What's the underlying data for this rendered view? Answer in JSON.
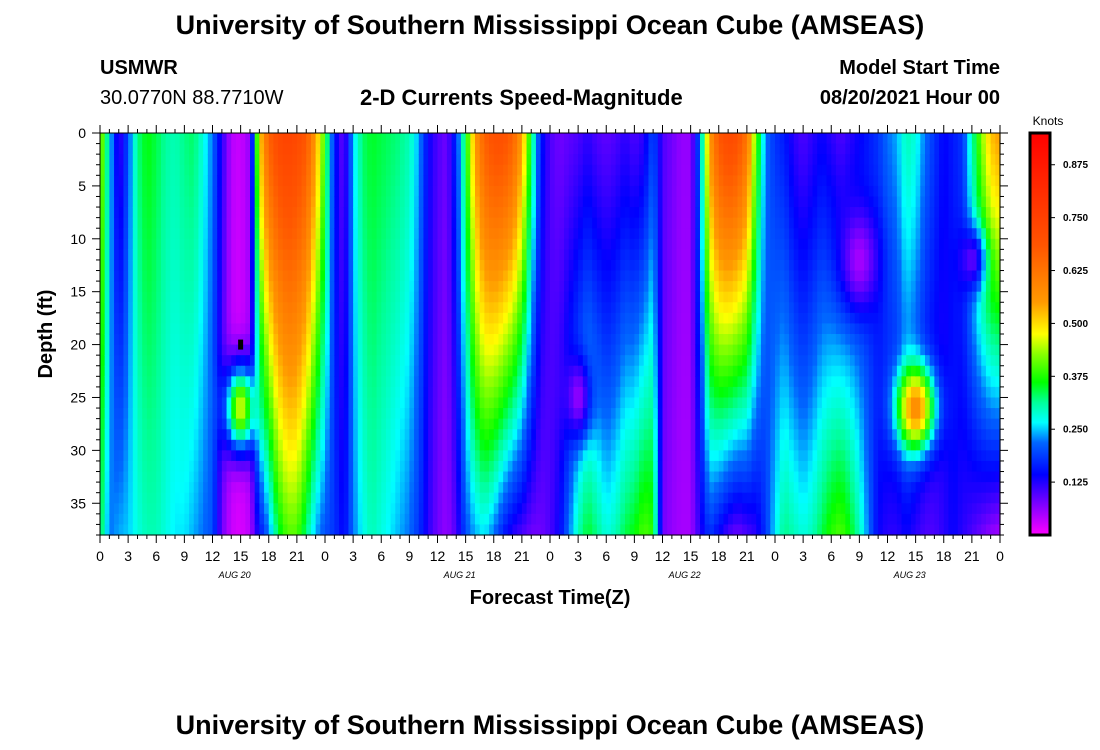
{
  "header": {
    "title": "University of Southern Mississippi Ocean Cube (AMSEAS)",
    "station": "USMWR",
    "coords": "30.0770N  88.7710W",
    "subtitle": "2-D Currents Speed-Magnitude",
    "start_label": "Model Start Time",
    "start_value": "08/20/2021 Hour 00"
  },
  "footer": {
    "title": "University of Southern Mississippi Ocean Cube (AMSEAS)"
  },
  "chart_data": {
    "type": "heatmap",
    "title": "2-D Currents Speed-Magnitude",
    "xlabel": "Forecast Time(Z)",
    "ylabel": "Depth (ft)",
    "x_unit": "hours since model start",
    "xlim": [
      0,
      96
    ],
    "ylim": [
      0,
      38
    ],
    "y_ticks": [
      0,
      5,
      10,
      15,
      20,
      25,
      30,
      35
    ],
    "x_tick_labels": [
      "0",
      "3",
      "6",
      "9",
      "12",
      "15",
      "18",
      "21",
      "0",
      "3",
      "6",
      "9",
      "12",
      "15",
      "18",
      "21",
      "0",
      "3",
      "6",
      "9",
      "12",
      "15",
      "18",
      "21",
      "0",
      "3",
      "6",
      "9",
      "12",
      "15",
      "18",
      "21",
      "0"
    ],
    "date_labels": [
      {
        "hour": 15,
        "label": "AUG 20"
      },
      {
        "hour": 39,
        "label": "AUG 21"
      },
      {
        "hour": 63,
        "label": "AUG 22"
      },
      {
        "hour": 87,
        "label": "AUG 23"
      }
    ],
    "colorbar": {
      "unit": "Knots",
      "min": 0.0,
      "max": 0.95,
      "ticks": [
        "0.125",
        "0.250",
        "0.375",
        "0.500",
        "0.625",
        "0.750",
        "0.875"
      ]
    },
    "marker": {
      "hour": 15,
      "depth": 20
    },
    "columns": [
      {
        "x": 0,
        "s": 0.45,
        "b": 0.35
      },
      {
        "x": 1,
        "s": 0.27,
        "b": 0.22
      },
      {
        "x": 2,
        "s": 0.1,
        "b": 0.24
      },
      {
        "x": 3,
        "s": 0.2,
        "b": 0.25
      },
      {
        "x": 4,
        "s": 0.32,
        "b": 0.28
      },
      {
        "x": 5,
        "s": 0.36,
        "b": 0.3
      },
      {
        "x": 6,
        "s": 0.34,
        "b": 0.3
      },
      {
        "x": 7,
        "s": 0.31,
        "b": 0.28
      },
      {
        "x": 8,
        "s": 0.3,
        "b": 0.26
      },
      {
        "x": 9,
        "s": 0.32,
        "b": 0.26
      },
      {
        "x": 10,
        "s": 0.33,
        "b": 0.24
      },
      {
        "x": 11,
        "s": 0.28,
        "b": 0.22
      },
      {
        "x": 12,
        "s": 0.22,
        "b": 0.2
      },
      {
        "x": 13,
        "s": 0.12,
        "b": 0.08
      },
      {
        "x": 14,
        "s": 0.04,
        "b": 0.03
      },
      {
        "x": 15,
        "s": 0.03,
        "b": 0.02
      },
      {
        "x": 16,
        "s": 0.06,
        "b": 0.04
      },
      {
        "x": 17,
        "s": 0.5,
        "b": 0.15
      },
      {
        "x": 18,
        "s": 0.66,
        "b": 0.22
      },
      {
        "x": 19,
        "s": 0.72,
        "b": 0.34
      },
      {
        "x": 20,
        "s": 0.74,
        "b": 0.4
      },
      {
        "x": 21,
        "s": 0.72,
        "b": 0.4
      },
      {
        "x": 22,
        "s": 0.68,
        "b": 0.32
      },
      {
        "x": 23,
        "s": 0.55,
        "b": 0.24
      },
      {
        "x": 24,
        "s": 0.38,
        "b": 0.2
      },
      {
        "x": 25,
        "s": 0.16,
        "b": 0.18
      },
      {
        "x": 26,
        "s": 0.08,
        "b": 0.14
      },
      {
        "x": 27,
        "s": 0.25,
        "b": 0.22
      },
      {
        "x": 28,
        "s": 0.33,
        "b": 0.27
      },
      {
        "x": 29,
        "s": 0.35,
        "b": 0.3
      },
      {
        "x": 30,
        "s": 0.34,
        "b": 0.28
      },
      {
        "x": 31,
        "s": 0.33,
        "b": 0.26
      },
      {
        "x": 32,
        "s": 0.32,
        "b": 0.24
      },
      {
        "x": 33,
        "s": 0.3,
        "b": 0.22
      },
      {
        "x": 34,
        "s": 0.24,
        "b": 0.18
      },
      {
        "x": 35,
        "s": 0.14,
        "b": 0.12
      },
      {
        "x": 36,
        "s": 0.1,
        "b": 0.08
      },
      {
        "x": 37,
        "s": 0.08,
        "b": 0.06
      },
      {
        "x": 38,
        "s": 0.18,
        "b": 0.1
      },
      {
        "x": 39,
        "s": 0.35,
        "b": 0.2
      },
      {
        "x": 40,
        "s": 0.55,
        "b": 0.24
      },
      {
        "x": 41,
        "s": 0.66,
        "b": 0.26
      },
      {
        "x": 42,
        "s": 0.7,
        "b": 0.22
      },
      {
        "x": 43,
        "s": 0.7,
        "b": 0.16
      },
      {
        "x": 44,
        "s": 0.66,
        "b": 0.12
      },
      {
        "x": 45,
        "s": 0.55,
        "b": 0.1
      },
      {
        "x": 46,
        "s": 0.34,
        "b": 0.08
      },
      {
        "x": 47,
        "s": 0.16,
        "b": 0.08
      },
      {
        "x": 48,
        "s": 0.1,
        "b": 0.1
      },
      {
        "x": 49,
        "s": 0.08,
        "b": 0.14
      },
      {
        "x": 50,
        "s": 0.09,
        "b": 0.22
      },
      {
        "x": 51,
        "s": 0.1,
        "b": 0.3
      },
      {
        "x": 52,
        "s": 0.12,
        "b": 0.35
      },
      {
        "x": 53,
        "s": 0.1,
        "b": 0.32
      },
      {
        "x": 54,
        "s": 0.09,
        "b": 0.28
      },
      {
        "x": 55,
        "s": 0.1,
        "b": 0.3
      },
      {
        "x": 56,
        "s": 0.12,
        "b": 0.34
      },
      {
        "x": 57,
        "s": 0.1,
        "b": 0.36
      },
      {
        "x": 58,
        "s": 0.12,
        "b": 0.4
      },
      {
        "x": 59,
        "s": 0.2,
        "b": 0.38
      },
      {
        "x": 60,
        "s": 0.1,
        "b": 0.08
      },
      {
        "x": 61,
        "s": 0.08,
        "b": 0.06
      },
      {
        "x": 62,
        "s": 0.06,
        "b": 0.05
      },
      {
        "x": 63,
        "s": 0.06,
        "b": 0.05
      },
      {
        "x": 64,
        "s": 0.22,
        "b": 0.12
      },
      {
        "x": 65,
        "s": 0.55,
        "b": 0.18
      },
      {
        "x": 66,
        "s": 0.68,
        "b": 0.14
      },
      {
        "x": 67,
        "s": 0.72,
        "b": 0.1
      },
      {
        "x": 68,
        "s": 0.7,
        "b": 0.08
      },
      {
        "x": 69,
        "s": 0.62,
        "b": 0.1
      },
      {
        "x": 70,
        "s": 0.4,
        "b": 0.12
      },
      {
        "x": 71,
        "s": 0.22,
        "b": 0.18
      },
      {
        "x": 72,
        "s": 0.18,
        "b": 0.26
      },
      {
        "x": 73,
        "s": 0.16,
        "b": 0.32
      },
      {
        "x": 74,
        "s": 0.12,
        "b": 0.3
      },
      {
        "x": 75,
        "s": 0.1,
        "b": 0.28
      },
      {
        "x": 76,
        "s": 0.12,
        "b": 0.3
      },
      {
        "x": 77,
        "s": 0.14,
        "b": 0.34
      },
      {
        "x": 78,
        "s": 0.12,
        "b": 0.38
      },
      {
        "x": 79,
        "s": 0.1,
        "b": 0.4
      },
      {
        "x": 80,
        "s": 0.12,
        "b": 0.36
      },
      {
        "x": 81,
        "s": 0.14,
        "b": 0.3
      },
      {
        "x": 82,
        "s": 0.16,
        "b": 0.22
      },
      {
        "x": 83,
        "s": 0.18,
        "b": 0.14
      },
      {
        "x": 84,
        "s": 0.22,
        "b": 0.12
      },
      {
        "x": 85,
        "s": 0.24,
        "b": 0.12
      },
      {
        "x": 86,
        "s": 0.3,
        "b": 0.14
      },
      {
        "x": 87,
        "s": 0.28,
        "b": 0.12
      },
      {
        "x": 88,
        "s": 0.22,
        "b": 0.1
      },
      {
        "x": 89,
        "s": 0.18,
        "b": 0.1
      },
      {
        "x": 90,
        "s": 0.14,
        "b": 0.12
      },
      {
        "x": 91,
        "s": 0.16,
        "b": 0.14
      },
      {
        "x": 92,
        "s": 0.18,
        "b": 0.12
      },
      {
        "x": 93,
        "s": 0.3,
        "b": 0.1
      },
      {
        "x": 94,
        "s": 0.42,
        "b": 0.08
      },
      {
        "x": 95,
        "s": 0.52,
        "b": 0.06
      },
      {
        "x": 96,
        "s": 0.55,
        "b": 0.05
      }
    ],
    "blobs": [
      {
        "hour": 15,
        "depth": 26,
        "value": 0.46,
        "rx": 1.6,
        "ry": 4.0
      },
      {
        "hour": 87,
        "depth": 26,
        "value": 0.58,
        "rx": 2.0,
        "ry": 4.0
      },
      {
        "hour": 51,
        "depth": 25,
        "value": 0.06,
        "rx": 1.4,
        "ry": 4.0
      },
      {
        "hour": 93,
        "depth": 12,
        "value": 0.09,
        "rx": 1.4,
        "ry": 3.0
      },
      {
        "hour": 81,
        "depth": 12,
        "value": 0.05,
        "rx": 2.0,
        "ry": 5.0
      }
    ]
  }
}
